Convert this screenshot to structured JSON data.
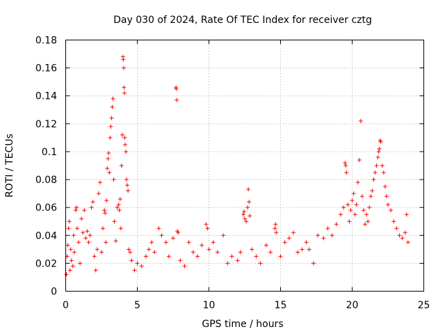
{
  "chart_data": {
    "type": "scatter",
    "title": "Day 030 of 2024, Rate Of TEC Index for receiver cztg",
    "xlabel": "GPS time / hours",
    "ylabel": "ROTI / TECUs",
    "xlim": [
      0,
      25
    ],
    "ylim": [
      0,
      0.18
    ],
    "x_ticks": [
      0,
      5,
      10,
      15,
      20,
      25
    ],
    "x_tick_labels": [
      "0",
      "5",
      "10",
      "15",
      "20",
      "25"
    ],
    "y_ticks": [
      0,
      0.02,
      0.04,
      0.06,
      0.08,
      0.1,
      0.12,
      0.14,
      0.16,
      0.18
    ],
    "y_tick_labels": [
      "0",
      "0.02",
      "0.04",
      "0.06",
      "0.08",
      "0.1",
      "0.12",
      "0.14",
      "0.16",
      "0.18"
    ],
    "grid": true,
    "marker": "+",
    "series": [
      {
        "name": "ROTI",
        "color": "#ff0000",
        "points": [
          [
            0.05,
            0.012
          ],
          [
            0.1,
            0.025
          ],
          [
            0.15,
            0.033
          ],
          [
            0.2,
            0.045
          ],
          [
            0.25,
            0.05
          ],
          [
            0.3,
            0.015
          ],
          [
            0.35,
            0.03
          ],
          [
            0.4,
            0.022
          ],
          [
            0.5,
            0.018
          ],
          [
            0.55,
            0.04
          ],
          [
            0.6,
            0.028
          ],
          [
            0.7,
            0.058
          ],
          [
            0.75,
            0.06
          ],
          [
            0.8,
            0.045
          ],
          [
            0.9,
            0.035
          ],
          [
            1.0,
            0.02
          ],
          [
            1.1,
            0.052
          ],
          [
            1.2,
            0.042
          ],
          [
            1.3,
            0.058
          ],
          [
            1.4,
            0.038
          ],
          [
            1.5,
            0.043
          ],
          [
            1.6,
            0.035
          ],
          [
            1.7,
            0.04
          ],
          [
            1.8,
            0.06
          ],
          [
            1.9,
            0.064
          ],
          [
            2.0,
            0.025
          ],
          [
            2.1,
            0.015
          ],
          [
            2.2,
            0.03
          ],
          [
            2.3,
            0.07
          ],
          [
            2.4,
            0.078
          ],
          [
            2.5,
            0.028
          ],
          [
            2.6,
            0.045
          ],
          [
            2.7,
            0.058
          ],
          [
            2.75,
            0.056
          ],
          [
            2.8,
            0.035
          ],
          [
            2.85,
            0.065
          ],
          [
            2.9,
            0.088
          ],
          [
            2.95,
            0.095
          ],
          [
            3.0,
            0.099
          ],
          [
            3.05,
            0.085
          ],
          [
            3.1,
            0.11
          ],
          [
            3.15,
            0.118
          ],
          [
            3.2,
            0.124
          ],
          [
            3.25,
            0.132
          ],
          [
            3.3,
            0.138
          ],
          [
            3.35,
            0.08
          ],
          [
            3.4,
            0.05
          ],
          [
            3.5,
            0.036
          ],
          [
            3.6,
            0.06
          ],
          [
            3.7,
            0.062
          ],
          [
            3.75,
            0.058
          ],
          [
            3.8,
            0.066
          ],
          [
            3.85,
            0.045
          ],
          [
            3.9,
            0.09
          ],
          [
            3.95,
            0.112
          ],
          [
            4.0,
            0.168
          ],
          [
            4.02,
            0.166
          ],
          [
            4.05,
            0.16
          ],
          [
            4.07,
            0.146
          ],
          [
            4.1,
            0.142
          ],
          [
            4.12,
            0.11
          ],
          [
            4.15,
            0.105
          ],
          [
            4.2,
            0.1
          ],
          [
            4.25,
            0.08
          ],
          [
            4.3,
            0.076
          ],
          [
            4.35,
            0.072
          ],
          [
            4.4,
            0.03
          ],
          [
            4.5,
            0.028
          ],
          [
            4.6,
            0.022
          ],
          [
            4.8,
            0.015
          ],
          [
            5.0,
            0.02
          ],
          [
            5.3,
            0.018
          ],
          [
            5.6,
            0.025
          ],
          [
            5.8,
            0.03
          ],
          [
            6.0,
            0.035
          ],
          [
            6.2,
            0.028
          ],
          [
            6.5,
            0.045
          ],
          [
            6.7,
            0.04
          ],
          [
            7.0,
            0.035
          ],
          [
            7.2,
            0.025
          ],
          [
            7.5,
            0.038
          ],
          [
            7.7,
            0.146
          ],
          [
            7.72,
            0.145
          ],
          [
            7.75,
            0.137
          ],
          [
            7.8,
            0.043
          ],
          [
            7.85,
            0.042
          ],
          [
            8.0,
            0.022
          ],
          [
            8.3,
            0.018
          ],
          [
            8.6,
            0.035
          ],
          [
            8.9,
            0.028
          ],
          [
            9.2,
            0.025
          ],
          [
            9.5,
            0.033
          ],
          [
            9.8,
            0.048
          ],
          [
            9.9,
            0.045
          ],
          [
            10.0,
            0.03
          ],
          [
            10.3,
            0.035
          ],
          [
            10.6,
            0.028
          ],
          [
            11.0,
            0.04
          ],
          [
            11.3,
            0.02
          ],
          [
            11.6,
            0.025
          ],
          [
            12.0,
            0.022
          ],
          [
            12.2,
            0.028
          ],
          [
            12.4,
            0.055
          ],
          [
            12.45,
            0.057
          ],
          [
            12.5,
            0.052
          ],
          [
            12.6,
            0.05
          ],
          [
            12.7,
            0.06
          ],
          [
            12.75,
            0.073
          ],
          [
            12.8,
            0.064
          ],
          [
            12.85,
            0.054
          ],
          [
            13.0,
            0.03
          ],
          [
            13.3,
            0.025
          ],
          [
            13.6,
            0.02
          ],
          [
            14.0,
            0.033
          ],
          [
            14.3,
            0.028
          ],
          [
            14.6,
            0.045
          ],
          [
            14.65,
            0.048
          ],
          [
            14.7,
            0.042
          ],
          [
            15.0,
            0.025
          ],
          [
            15.3,
            0.035
          ],
          [
            15.6,
            0.038
          ],
          [
            15.9,
            0.042
          ],
          [
            16.2,
            0.028
          ],
          [
            16.5,
            0.03
          ],
          [
            16.8,
            0.035
          ],
          [
            17.0,
            0.03
          ],
          [
            17.3,
            0.02
          ],
          [
            17.6,
            0.04
          ],
          [
            18.0,
            0.038
          ],
          [
            18.3,
            0.045
          ],
          [
            18.6,
            0.04
          ],
          [
            18.9,
            0.048
          ],
          [
            19.2,
            0.055
          ],
          [
            19.4,
            0.06
          ],
          [
            19.5,
            0.092
          ],
          [
            19.55,
            0.09
          ],
          [
            19.6,
            0.085
          ],
          [
            19.7,
            0.062
          ],
          [
            19.8,
            0.05
          ],
          [
            19.9,
            0.058
          ],
          [
            20.0,
            0.065
          ],
          [
            20.1,
            0.07
          ],
          [
            20.2,
            0.055
          ],
          [
            20.3,
            0.062
          ],
          [
            20.4,
            0.078
          ],
          [
            20.5,
            0.094
          ],
          [
            20.6,
            0.122
          ],
          [
            20.7,
            0.068
          ],
          [
            20.8,
            0.058
          ],
          [
            20.9,
            0.048
          ],
          [
            21.0,
            0.055
          ],
          [
            21.1,
            0.05
          ],
          [
            21.2,
            0.06
          ],
          [
            21.3,
            0.068
          ],
          [
            21.4,
            0.072
          ],
          [
            21.5,
            0.08
          ],
          [
            21.6,
            0.085
          ],
          [
            21.7,
            0.09
          ],
          [
            21.8,
            0.096
          ],
          [
            21.85,
            0.1
          ],
          [
            21.9,
            0.102
          ],
          [
            21.95,
            0.108
          ],
          [
            22.0,
            0.107
          ],
          [
            22.1,
            0.09
          ],
          [
            22.2,
            0.085
          ],
          [
            22.3,
            0.075
          ],
          [
            22.4,
            0.068
          ],
          [
            22.5,
            0.062
          ],
          [
            22.7,
            0.058
          ],
          [
            22.9,
            0.05
          ],
          [
            23.1,
            0.045
          ],
          [
            23.3,
            0.04
          ],
          [
            23.5,
            0.038
          ],
          [
            23.7,
            0.042
          ],
          [
            23.8,
            0.055
          ],
          [
            23.9,
            0.035
          ]
        ]
      }
    ]
  }
}
